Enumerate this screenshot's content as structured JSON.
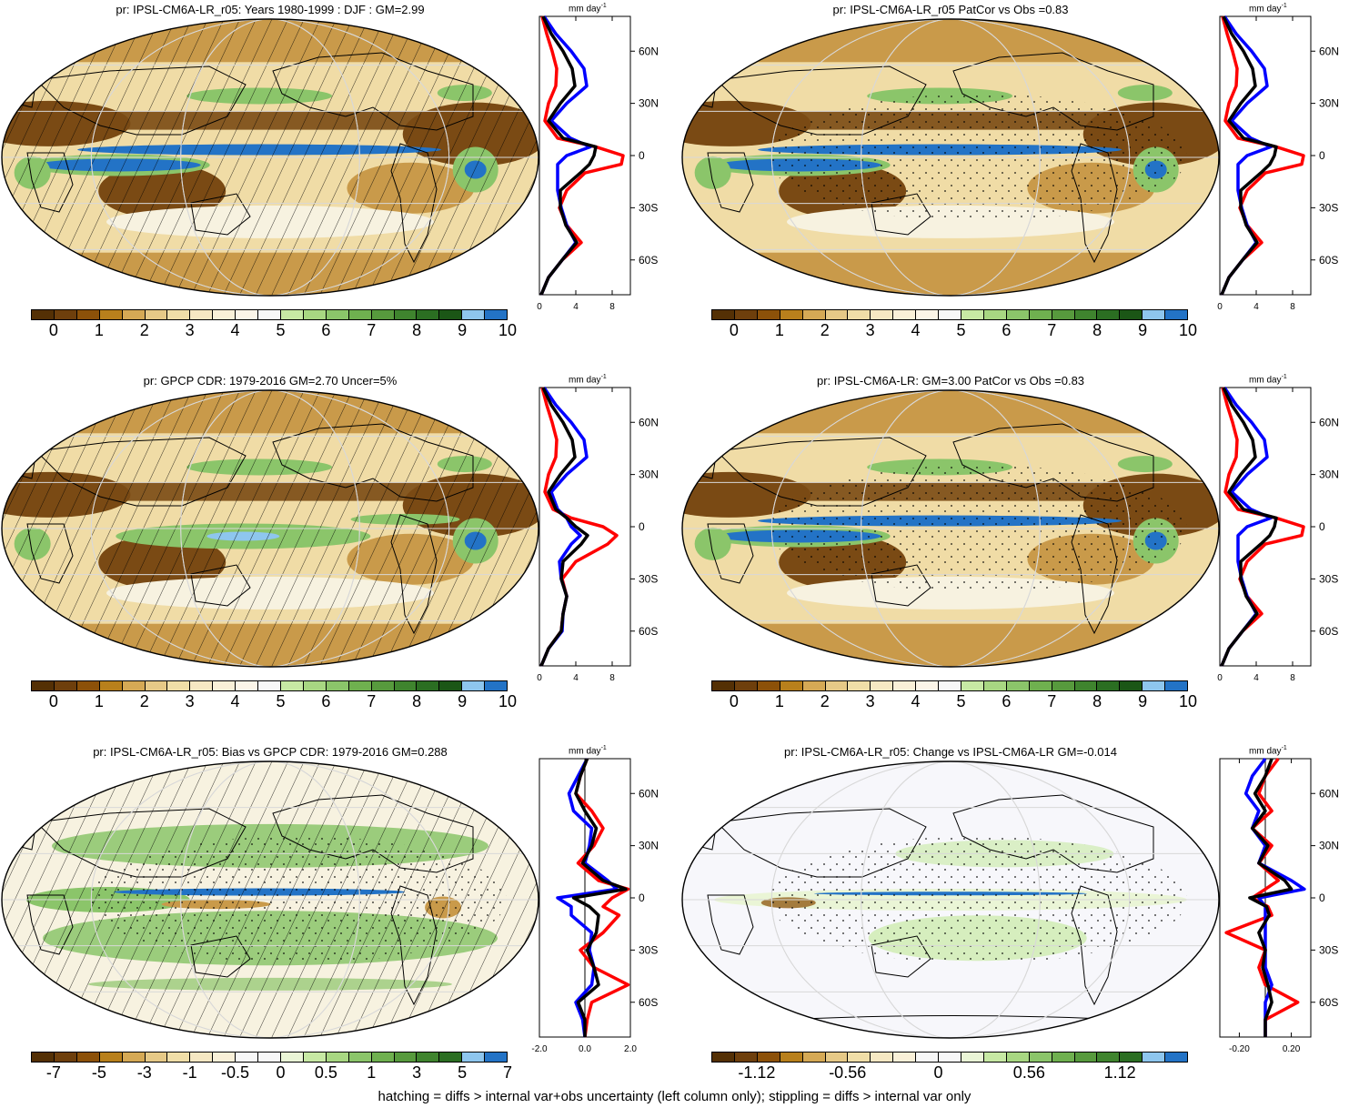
{
  "footer": "hatching = diffs > internal var+obs uncertainty (left column only); stippling = diffs > internal var only",
  "colorbars": {
    "abs": {
      "colors": [
        "#543005",
        "#6e3f0c",
        "#8c5109",
        "#b8801c",
        "#d5a955",
        "#e6c987",
        "#f0dea8",
        "#f6e8c3",
        "#f9f0d8",
        "#fbf5e8",
        "#f7f7f7",
        "#c7e9a4",
        "#a8d782",
        "#8bc56a",
        "#6fb04f",
        "#579a3d",
        "#3f842e",
        "#2b6e22",
        "#1b5616",
        "#8ec6ee",
        "#2373c6"
      ],
      "labels": [
        "0",
        "1",
        "2",
        "3",
        "4",
        "5",
        "6",
        "7",
        "8",
        "9",
        "10"
      ]
    },
    "bias": {
      "colors": [
        "#543005",
        "#6e3f0c",
        "#8c5109",
        "#b8801c",
        "#d5a955",
        "#e6c987",
        "#f0dea8",
        "#f6e8c3",
        "#f9f0d8",
        "#f7f7f7",
        "#f7f7f7",
        "#eaf5d6",
        "#c7e9a4",
        "#a8d782",
        "#8bc56a",
        "#6fb04f",
        "#579a3d",
        "#3f842e",
        "#2b6e22",
        "#8ec6ee",
        "#2373c6"
      ],
      "labels": [
        "-7",
        "-5",
        "-3",
        "-1",
        "-0.5",
        "0",
        "0.5",
        "1",
        "3",
        "5",
        "7"
      ]
    },
    "change": {
      "colors": [
        "#543005",
        "#6e3f0c",
        "#8c5109",
        "#b8801c",
        "#d5a955",
        "#e6c987",
        "#f0dea8",
        "#f6e8c3",
        "#f9f0d8",
        "#f7f7f7",
        "#f7f7f7",
        "#eaf5d6",
        "#c7e9a4",
        "#a8d782",
        "#8bc56a",
        "#6fb04f",
        "#579a3d",
        "#3f842e",
        "#2b6e22",
        "#8ec6ee",
        "#2373c6"
      ],
      "labels": [
        "-1.12",
        "-0.56",
        "0",
        "0.56",
        "1.12"
      ]
    }
  },
  "panels": [
    {
      "title": "pr: IPSL-CM6A-LR_r05: Years 1980-1999 : DJF : GM=2.99",
      "palette": "abs",
      "style": "abs",
      "hatch": true,
      "stipple": false
    },
    {
      "title": "pr: IPSL-CM6A-LR_r05 PatCor vs Obs =0.83",
      "palette": "abs",
      "style": "abs",
      "hatch": false,
      "stipple": true
    },
    {
      "title": "pr: GPCP CDR: 1979-2016 GM=2.70 Uncer=5%",
      "palette": "abs",
      "style": "abs_obs",
      "hatch": true,
      "stipple": false
    },
    {
      "title": "pr: IPSL-CM6A-LR: GM=3.00 PatCor vs Obs =0.83",
      "palette": "abs",
      "style": "abs",
      "hatch": false,
      "stipple": true
    },
    {
      "title": "pr: IPSL-CM6A-LR_r05: Bias vs GPCP CDR: 1979-2016 GM=0.288",
      "palette": "bias",
      "style": "bias",
      "hatch": true,
      "stipple": true
    },
    {
      "title": "pr: IPSL-CM6A-LR_r05: Change vs IPSL-CM6A-LR GM=-0.014",
      "palette": "change",
      "style": "change",
      "hatch": false,
      "stipple": true
    }
  ],
  "chart_data": [
    {
      "type": "line",
      "panel": 0,
      "xlabel": "mm day-1",
      "unit_base": "mm day",
      "unit_exp": "-1",
      "xlim": [
        0,
        10
      ],
      "xticks": [
        0,
        4,
        8
      ],
      "xticklabels": [
        "0",
        "4",
        "8"
      ],
      "ylim": [
        -80,
        80
      ],
      "yticks": [
        60,
        30,
        0,
        -30,
        -60
      ],
      "yticklabels": [
        "60N",
        "30N",
        "0",
        "30S",
        "60S"
      ],
      "lat": [
        80,
        70,
        60,
        50,
        40,
        30,
        20,
        10,
        5,
        0,
        -5,
        -10,
        -20,
        -30,
        -40,
        -50,
        -60,
        -70,
        -80
      ],
      "series": [
        {
          "color": "#ff0000",
          "values": [
            0.3,
            0.8,
            1.4,
            1.9,
            1.8,
            1.0,
            0.6,
            2.0,
            6.2,
            9.2,
            9.0,
            5.0,
            3.0,
            2.2,
            3.0,
            4.6,
            2.5,
            1.0,
            0.2
          ]
        },
        {
          "color": "#0000ff",
          "values": [
            0.5,
            1.8,
            3.5,
            4.9,
            5.2,
            3.0,
            1.3,
            3.4,
            5.6,
            3.0,
            2.0,
            2.0,
            2.0,
            2.4,
            3.0,
            4.0,
            2.5,
            1.0,
            0.2
          ]
        },
        {
          "color": "#000000",
          "values": [
            0.4,
            1.3,
            2.6,
            3.6,
            3.9,
            2.3,
            1.0,
            2.6,
            6.2,
            6.0,
            5.5,
            4.5,
            2.3,
            2.3,
            2.9,
            4.1,
            2.5,
            1.0,
            0.2
          ]
        }
      ]
    },
    {
      "type": "line",
      "panel": 1,
      "xlabel": "mm day-1",
      "unit_base": "mm day",
      "unit_exp": "-1",
      "xlim": [
        0,
        10
      ],
      "xticks": [
        0,
        4,
        8
      ],
      "xticklabels": [
        "0",
        "4",
        "8"
      ],
      "ylim": [
        -80,
        80
      ],
      "yticks": [
        60,
        30,
        0,
        -30,
        -60
      ],
      "yticklabels": [
        "60N",
        "30N",
        "0",
        "30S",
        "60S"
      ],
      "lat": [
        80,
        70,
        60,
        50,
        40,
        30,
        20,
        10,
        5,
        0,
        -5,
        -10,
        -20,
        -30,
        -40,
        -50,
        -60,
        -70,
        -80
      ],
      "series": [
        {
          "color": "#ff0000",
          "values": [
            0.3,
            0.8,
            1.4,
            1.9,
            1.8,
            1.0,
            0.6,
            2.0,
            6.2,
            9.2,
            9.0,
            5.0,
            3.0,
            2.2,
            3.0,
            4.6,
            2.5,
            1.0,
            0.2
          ]
        },
        {
          "color": "#0000ff",
          "values": [
            0.5,
            1.8,
            3.5,
            4.9,
            5.2,
            3.0,
            1.3,
            3.4,
            5.6,
            3.0,
            2.0,
            2.0,
            2.0,
            2.4,
            3.0,
            4.0,
            2.5,
            1.0,
            0.2
          ]
        },
        {
          "color": "#000000",
          "values": [
            0.4,
            1.3,
            2.6,
            3.6,
            3.9,
            2.3,
            1.0,
            2.6,
            6.2,
            6.0,
            5.5,
            4.5,
            2.3,
            2.3,
            2.9,
            4.1,
            2.5,
            1.0,
            0.2
          ]
        }
      ]
    },
    {
      "type": "line",
      "panel": 2,
      "xlabel": "mm day-1",
      "unit_base": "mm day",
      "unit_exp": "-1",
      "xlim": [
        0,
        10
      ],
      "xticks": [
        0,
        4,
        8
      ],
      "xticklabels": [
        "0",
        "4",
        "8"
      ],
      "ylim": [
        -80,
        80
      ],
      "yticks": [
        60,
        30,
        0,
        -30,
        -60
      ],
      "yticklabels": [
        "60N",
        "30N",
        "0",
        "30S",
        "60S"
      ],
      "lat": [
        80,
        70,
        60,
        50,
        40,
        30,
        20,
        10,
        5,
        0,
        -5,
        -10,
        -20,
        -30,
        -40,
        -50,
        -60,
        -70,
        -80
      ],
      "series": [
        {
          "color": "#ff0000",
          "values": [
            0.3,
            0.8,
            1.4,
            1.9,
            1.8,
            1.0,
            0.6,
            1.5,
            3.5,
            7.0,
            8.5,
            7.5,
            4.0,
            2.5,
            3.0,
            2.6,
            2.4,
            1.0,
            0.2
          ]
        },
        {
          "color": "#0000ff",
          "values": [
            0.5,
            1.8,
            3.5,
            4.9,
            5.2,
            3.0,
            1.3,
            2.0,
            3.0,
            3.5,
            4.5,
            3.5,
            2.2,
            2.4,
            3.0,
            2.6,
            2.5,
            1.0,
            0.2
          ]
        },
        {
          "color": "#000000",
          "values": [
            0.4,
            1.3,
            2.6,
            3.6,
            3.9,
            2.3,
            1.0,
            1.8,
            3.0,
            4.0,
            5.3,
            4.6,
            2.6,
            2.4,
            3.0,
            2.6,
            2.4,
            1.0,
            0.2
          ]
        }
      ]
    },
    {
      "type": "line",
      "panel": 3,
      "xlabel": "mm day-1",
      "unit_base": "mm day",
      "unit_exp": "-1",
      "xlim": [
        0,
        10
      ],
      "xticks": [
        0,
        4,
        8
      ],
      "xticklabels": [
        "0",
        "4",
        "8"
      ],
      "ylim": [
        -80,
        80
      ],
      "yticks": [
        60,
        30,
        0,
        -30,
        -60
      ],
      "yticklabels": [
        "60N",
        "30N",
        "0",
        "30S",
        "60S"
      ],
      "lat": [
        80,
        70,
        60,
        50,
        40,
        30,
        20,
        10,
        5,
        0,
        -5,
        -10,
        -20,
        -30,
        -40,
        -50,
        -60,
        -70,
        -80
      ],
      "series": [
        {
          "color": "#ff0000",
          "values": [
            0.3,
            0.8,
            1.4,
            1.9,
            1.8,
            1.0,
            0.6,
            2.0,
            6.2,
            9.2,
            9.0,
            5.0,
            3.0,
            2.2,
            3.0,
            4.6,
            2.5,
            1.0,
            0.2
          ]
        },
        {
          "color": "#0000ff",
          "values": [
            0.5,
            1.8,
            3.5,
            4.9,
            5.2,
            3.0,
            1.3,
            3.4,
            5.6,
            3.0,
            2.0,
            2.0,
            2.0,
            2.4,
            3.0,
            4.0,
            2.5,
            1.0,
            0.2
          ]
        },
        {
          "color": "#000000",
          "values": [
            0.4,
            1.3,
            2.6,
            3.6,
            3.9,
            2.3,
            1.0,
            2.6,
            6.2,
            6.0,
            5.5,
            4.5,
            2.3,
            2.3,
            2.9,
            4.1,
            2.5,
            1.0,
            0.2
          ]
        }
      ]
    },
    {
      "type": "line",
      "panel": 4,
      "xlabel": "mm day-1",
      "unit_base": "mm day",
      "unit_exp": "-1",
      "xlim": [
        -2,
        2
      ],
      "xticks": [
        -2,
        0,
        2
      ],
      "xticklabels": [
        "-2.0",
        "0.0",
        "2.0"
      ],
      "ylim": [
        -80,
        80
      ],
      "yticks": [
        60,
        30,
        0,
        -30,
        -60
      ],
      "yticklabels": [
        "60N",
        "30N",
        "0",
        "30S",
        "60S"
      ],
      "lat": [
        80,
        70,
        60,
        50,
        40,
        30,
        20,
        10,
        5,
        0,
        -5,
        -10,
        -20,
        -30,
        -40,
        -50,
        -60,
        -70,
        -80
      ],
      "series": [
        {
          "color": "#ff0000",
          "values": [
            0.1,
            -0.2,
            -0.4,
            0.3,
            0.8,
            0.4,
            -0.3,
            0.6,
            1.9,
            1.2,
            0.8,
            1.5,
            0.8,
            -0.2,
            0.4,
            1.9,
            0.3,
            0.1,
            0.0
          ]
        },
        {
          "color": "#0000ff",
          "values": [
            0.1,
            -0.3,
            -0.7,
            -0.5,
            0.3,
            0.2,
            0.0,
            1.0,
            1.4,
            -1.2,
            -0.6,
            -0.6,
            0.3,
            0.2,
            0.4,
            0.3,
            -0.4,
            -0.1,
            0.0
          ]
        },
        {
          "color": "#000000",
          "values": [
            0.1,
            -0.2,
            -0.4,
            0.0,
            0.5,
            0.3,
            -0.1,
            0.8,
            1.8,
            -0.5,
            0.2,
            0.6,
            0.5,
            0.1,
            0.4,
            0.6,
            -0.3,
            0.0,
            0.0
          ]
        }
      ]
    },
    {
      "type": "line",
      "panel": 5,
      "xlabel": "mm day-1",
      "unit_base": "mm day",
      "unit_exp": "-1",
      "xlim": [
        -0.35,
        0.35
      ],
      "xticks": [
        -0.2,
        0.2
      ],
      "xticklabels": [
        "-0.20",
        "0.20"
      ],
      "ylim": [
        -80,
        80
      ],
      "yticks": [
        60,
        30,
        0,
        -30,
        -60
      ],
      "yticklabels": [
        "60N",
        "30N",
        "0",
        "30S",
        "60S"
      ],
      "lat": [
        80,
        70,
        60,
        50,
        40,
        30,
        20,
        10,
        5,
        0,
        -5,
        -10,
        -20,
        -30,
        -40,
        -50,
        -60,
        -70,
        -80
      ],
      "series": [
        {
          "color": "#ff0000",
          "values": [
            0.1,
            0.0,
            -0.05,
            0.05,
            -0.1,
            0.05,
            -0.05,
            0.1,
            0.0,
            -0.1,
            0.02,
            0.05,
            -0.3,
            0.0,
            -0.05,
            0.0,
            0.25,
            0.0,
            0.0
          ]
        },
        {
          "color": "#0000ff",
          "values": [
            0.0,
            -0.1,
            -0.15,
            -0.05,
            -0.1,
            0.0,
            -0.05,
            0.2,
            0.3,
            -0.05,
            0.0,
            0.0,
            0.0,
            0.0,
            0.0,
            0.05,
            0.0,
            0.0,
            0.0
          ]
        },
        {
          "color": "#000000",
          "values": [
            0.05,
            0.0,
            -0.08,
            0.0,
            -0.1,
            0.02,
            -0.05,
            0.15,
            0.2,
            -0.12,
            0.01,
            0.03,
            -0.05,
            0.0,
            -0.02,
            0.02,
            0.05,
            0.0,
            0.0
          ]
        }
      ]
    }
  ]
}
